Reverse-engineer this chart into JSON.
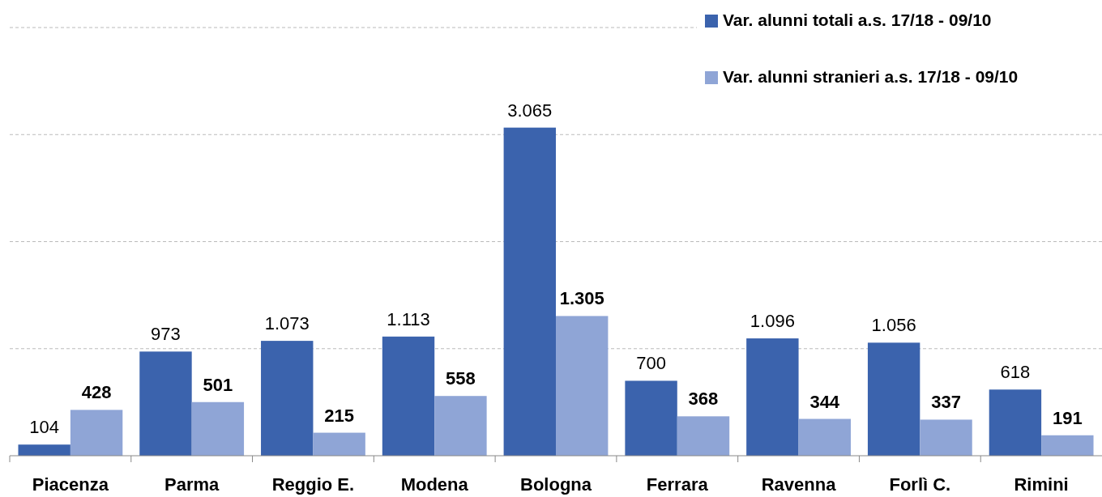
{
  "chart_data": {
    "type": "bar",
    "categories": [
      "Piacenza",
      "Parma",
      "Reggio E.",
      "Modena",
      "Bologna",
      "Ferrara",
      "Ravenna",
      "Forlì C.",
      "Rimini"
    ],
    "series": [
      {
        "name": "Var. alunni totali a.s. 17/18 - 09/10",
        "color": "#3b63ad",
        "values": [
          104,
          973,
          1073,
          1113,
          3065,
          700,
          1096,
          1056,
          618
        ],
        "value_labels": [
          "104",
          "973",
          "1.073",
          "1.113",
          "3.065",
          "700",
          "1.096",
          "1.056",
          "618"
        ]
      },
      {
        "name": "Var. alunni stranieri a.s. 17/18 - 09/10",
        "color": "#8fa5d6",
        "values": [
          428,
          501,
          215,
          558,
          1305,
          368,
          344,
          337,
          191
        ],
        "value_labels": [
          "428",
          "501",
          "215",
          "558",
          "1.305",
          "368",
          "344",
          "337",
          "191"
        ]
      }
    ],
    "ylim": [
      0,
      4000
    ],
    "yticks": [
      {
        "value": 0,
        "label": null
      },
      {
        "value": 1000,
        "label": null
      },
      {
        "value": 2000,
        "label": null
      },
      {
        "value": 3000,
        "label": null
      },
      {
        "value": 4000,
        "label": null
      }
    ],
    "grid": "y",
    "legend": "top right",
    "tick_labels": "x"
  }
}
